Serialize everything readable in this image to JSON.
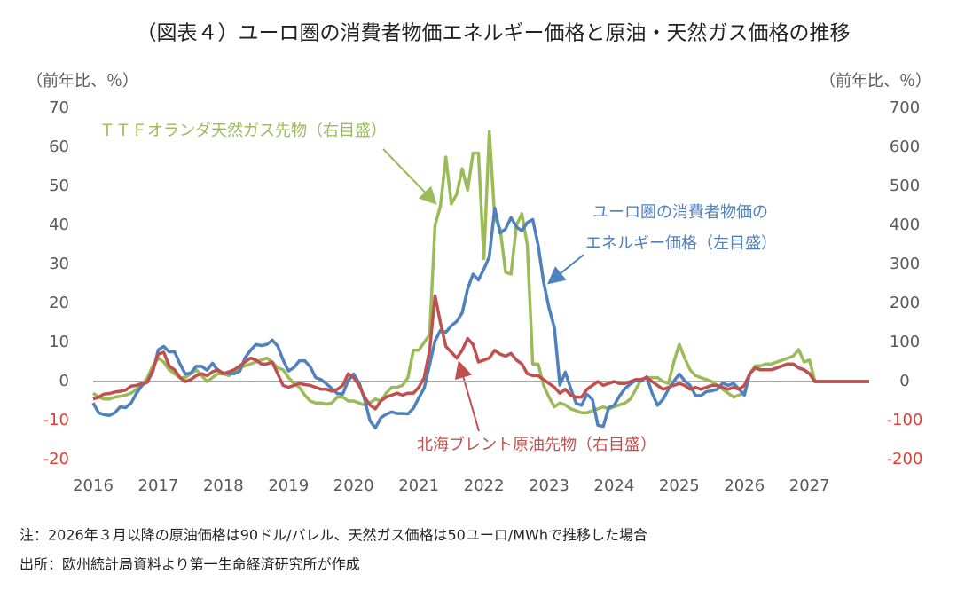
{
  "chart_data": {
    "type": "line",
    "title": "（図表４）ユーロ圏の消費者物価エネルギー価格と原油・天然ガス価格の推移",
    "y_label": "（前年比、％）",
    "y2_label": "（前年比、％）",
    "categories": [
      "2016",
      null,
      null,
      null,
      null,
      null,
      null,
      null,
      null,
      null,
      null,
      null,
      "2017",
      null,
      null,
      null,
      null,
      null,
      null,
      null,
      null,
      null,
      null,
      null,
      "2018",
      null,
      null,
      null,
      null,
      null,
      null,
      null,
      null,
      null,
      null,
      null,
      "2019",
      null,
      null,
      null,
      null,
      null,
      null,
      null,
      null,
      null,
      null,
      null,
      "2020",
      null,
      null,
      null,
      null,
      null,
      null,
      null,
      null,
      null,
      null,
      null,
      "2021",
      null,
      null,
      null,
      null,
      null,
      null,
      null,
      null,
      null,
      null,
      null,
      "2022",
      null,
      null,
      null,
      null,
      null,
      null,
      null,
      null,
      null,
      null,
      null,
      "2023",
      null,
      null,
      null,
      null,
      null,
      null,
      null,
      null,
      null,
      null,
      null,
      "2024",
      null,
      null,
      null,
      null,
      null,
      null,
      null,
      null,
      null,
      null,
      null,
      "2025",
      null,
      null,
      null,
      null,
      null,
      null,
      null,
      null,
      null,
      null,
      null,
      "2026",
      null,
      null,
      null,
      null,
      null,
      null,
      null,
      null,
      null,
      null,
      null,
      "2027",
      null,
      null,
      null,
      null,
      null,
      null,
      null,
      null,
      null,
      null,
      null
    ],
    "ylim": [
      -20,
      70
    ],
    "yticks": [
      70,
      60,
      50,
      40,
      30,
      20,
      10,
      0,
      -10,
      -20
    ],
    "y2lim": [
      -200,
      700
    ],
    "y2ticks": [
      700,
      600,
      500,
      400,
      300,
      200,
      100,
      0,
      -100,
      -200
    ],
    "grid": false,
    "series": [
      {
        "name": "ＴＴＦオランダ天然ガス先物（右目盛）",
        "color": "#9bbb59",
        "axis": "y2",
        "values": [
          -30,
          -40,
          -45,
          -45,
          -40,
          -38,
          -35,
          -30,
          -20,
          -10,
          10,
          40,
          60,
          50,
          30,
          20,
          10,
          10,
          20,
          30,
          15,
          0,
          10,
          20,
          20,
          15,
          25,
          35,
          40,
          45,
          50,
          55,
          60,
          50,
          35,
          30,
          10,
          -5,
          -15,
          -35,
          -50,
          -55,
          -55,
          -58,
          -55,
          -40,
          -40,
          -50,
          -50,
          -55,
          -60,
          -55,
          -45,
          -50,
          -30,
          -15,
          -15,
          -10,
          10,
          80,
          80,
          100,
          120,
          400,
          450,
          575,
          455,
          480,
          545,
          490,
          585,
          585,
          315,
          640,
          420,
          390,
          280,
          275,
          400,
          430,
          350,
          45,
          45,
          -10,
          -40,
          -65,
          -55,
          -60,
          -70,
          -75,
          -80,
          -80,
          -75,
          -70,
          -65,
          -70,
          -65,
          -60,
          -55,
          -45,
          -20,
          5,
          10,
          10,
          10,
          0,
          -5,
          50,
          95,
          60,
          30,
          15,
          10,
          5,
          0,
          -10,
          -20,
          -30,
          -40,
          -35,
          -30,
          20,
          40,
          40,
          45,
          45,
          50,
          55,
          60,
          65,
          82,
          50,
          55,
          0,
          0,
          0,
          0,
          0,
          0,
          0,
          0,
          0,
          0,
          0
        ]
      },
      {
        "name": "ユーロ圏の消費者物価のエネルギー価格（左目盛）",
        "color": "#4f81bd",
        "values": [
          -5.5,
          -8,
          -8.5,
          -8.7,
          -8,
          -6.5,
          -6.7,
          -5.5,
          -3,
          -1,
          0,
          2.5,
          8.1,
          9,
          7.6,
          7.6,
          4.5,
          1.9,
          2.2,
          3.9,
          3.9,
          2.9,
          4.7,
          2.8,
          2.2,
          2.1,
          2,
          2.6,
          6.1,
          8,
          9.5,
          9.2,
          9.5,
          10.6,
          9.1,
          5.5,
          2.7,
          3.6,
          5.3,
          5.3,
          3.8,
          1,
          0.5,
          -0.6,
          -1.8,
          -3.1,
          -3.2,
          0.2,
          1.9,
          -0.3,
          -4.5,
          -10,
          -11.9,
          -9.3,
          -8.4,
          -7.8,
          -8.2,
          -8.2,
          -8.3,
          -6.9,
          -4.2,
          -1.7,
          4.3,
          10.4,
          13.1,
          12.6,
          14.3,
          15.4,
          17.6,
          23.7,
          27.5,
          26,
          28.8,
          32,
          44.4,
          38,
          39.1,
          42,
          39.6,
          38.6,
          40.7,
          41.5,
          34.9,
          25.5,
          18.9,
          13.7,
          -0.9,
          2.4,
          -1.8,
          -5.6,
          -6.1,
          -3.3,
          -4.6,
          -11.2,
          -11.5,
          -6.7,
          -6.1,
          -3.7,
          -1.8,
          -0.6,
          0.3,
          0.2,
          1.2,
          -3,
          -6.1,
          -4.6,
          -2,
          0.1,
          1.9,
          0.2,
          -1,
          -3.6,
          -3.6,
          -2.6,
          -2.4,
          -2,
          -0.4,
          -1,
          -0.5,
          -1.9,
          -3.5,
          2,
          3.5,
          3,
          3,
          3,
          3.5,
          4,
          4.5,
          4.5,
          3.5,
          3,
          2,
          0,
          0,
          0,
          0,
          0,
          0,
          0,
          0,
          0,
          0,
          0
        ]
      },
      {
        "name": "北海ブレント原油先物（右目盛）",
        "color": "#c0504d",
        "axis": "y2",
        "values": [
          -45,
          -40,
          -32,
          -31,
          -27,
          -25,
          -22,
          -12,
          -10,
          -5,
          -2,
          30,
          70,
          75,
          40,
          30,
          10,
          0,
          5,
          15,
          20,
          15,
          25,
          30,
          20,
          25,
          30,
          40,
          50,
          60,
          55,
          45,
          45,
          50,
          20,
          -10,
          -15,
          -10,
          -5,
          -8,
          -10,
          -15,
          -20,
          -20,
          -25,
          -20,
          -10,
          20,
          10,
          -10,
          -40,
          -60,
          -70,
          -50,
          -40,
          -35,
          -30,
          -35,
          -30,
          -30,
          -15,
          10,
          80,
          220,
          150,
          90,
          75,
          60,
          80,
          110,
          95,
          50,
          55,
          60,
          80,
          70,
          65,
          72,
          55,
          45,
          20,
          15,
          15,
          5,
          -5,
          -15,
          -30,
          -20,
          -35,
          -40,
          -40,
          -20,
          -10,
          0,
          -10,
          -5,
          0,
          -5,
          -5,
          0,
          5,
          5,
          10,
          0,
          -10,
          -20,
          -15,
          -10,
          -5,
          -10,
          -20,
          -15,
          -20,
          -15,
          -10,
          -10,
          -15,
          -20,
          -15,
          -20,
          -10,
          20,
          35,
          30,
          30,
          30,
          35,
          40,
          45,
          45,
          35,
          30,
          20,
          0,
          0,
          0,
          0,
          0,
          0,
          0,
          0,
          0,
          0,
          0
        ]
      }
    ],
    "annotations": [
      "ＴＴＦオランダ天然ガス先物（右目盛）",
      "ユーロ圏の消費者物価の",
      "エネルギー価格（左目盛）",
      "北海ブレント原油先物（右目盛）"
    ],
    "note": "注：2026年３月以降の原油価格は90ドル/バレル、天然ガス価格は50ユーロ/MWhで推移した場合",
    "source": "出所：欧州統計局資料より第一生命経済研究所が作成"
  }
}
